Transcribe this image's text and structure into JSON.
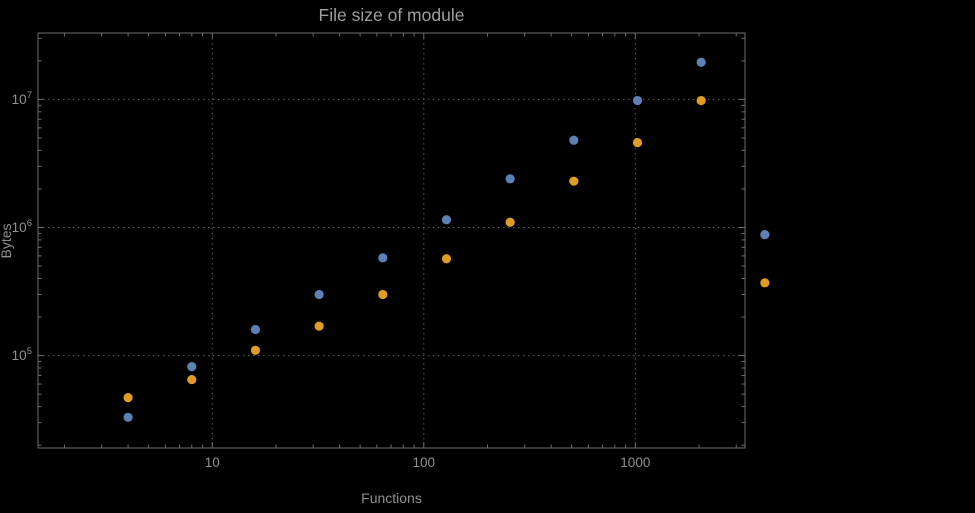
{
  "chart_data": {
    "type": "scatter",
    "title": "File size of module",
    "xlabel": "Functions",
    "ylabel": "Bytes",
    "xscale": "log",
    "yscale": "log",
    "xlim": [
      1.5,
      3300
    ],
    "ylim": [
      19000,
      33000000
    ],
    "x_ticks": [
      10,
      100,
      1000
    ],
    "x_tick_labels": [
      "10",
      "100",
      "1000"
    ],
    "y_ticks": [
      100000,
      1000000,
      10000000
    ],
    "y_tick_label_base": "10",
    "grid": true,
    "legend": "none",
    "colors": {
      "frame": "#6e6e6e",
      "grid": "#5c5c5c",
      "tick_text": "#8f8f8f",
      "title_text": "#9e9e9e",
      "background": "#000000"
    },
    "series": [
      {
        "name": "series-blue",
        "color": "#5e81b5",
        "points": [
          [
            4,
            33000
          ],
          [
            8,
            82000
          ],
          [
            16,
            160000
          ],
          [
            32,
            300000
          ],
          [
            64,
            580000
          ],
          [
            128,
            1150000
          ],
          [
            256,
            2400000
          ],
          [
            512,
            4800000
          ],
          [
            1024,
            9800000
          ],
          [
            2048,
            19500000
          ],
          [
            4096,
            880000
          ]
        ]
      },
      {
        "name": "series-orange",
        "color": "#e19c24",
        "points": [
          [
            4,
            47000
          ],
          [
            8,
            65000
          ],
          [
            16,
            110000
          ],
          [
            32,
            170000
          ],
          [
            64,
            300000
          ],
          [
            128,
            570000
          ],
          [
            256,
            1100000
          ],
          [
            512,
            2300000
          ],
          [
            1024,
            4600000
          ],
          [
            2048,
            9800000
          ],
          [
            4096,
            370000
          ]
        ]
      }
    ]
  }
}
